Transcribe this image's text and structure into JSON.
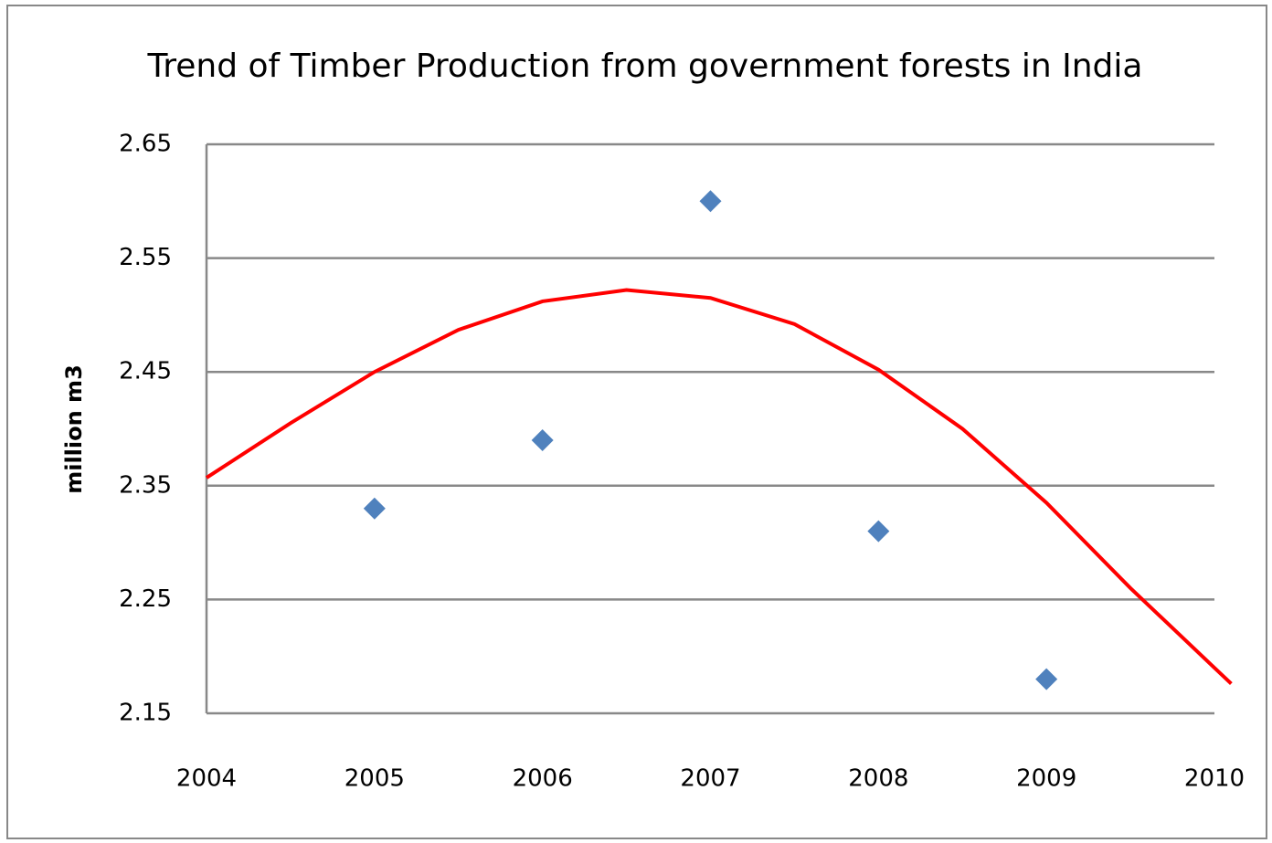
{
  "chart_data": {
    "type": "scatter",
    "title": "Trend of Timber Production from government forests in India",
    "y_label": "million m3",
    "series": [
      {
        "type": "scatter",
        "color": "#4f81bd",
        "x": [
          2005,
          2006,
          2007,
          2008,
          2009
        ],
        "values": [
          2.33,
          2.39,
          2.6,
          2.31,
          2.18
        ]
      },
      {
        "type": "line",
        "color": "#ff0000",
        "x": [
          2004,
          2004.5,
          2005,
          2005.5,
          2006,
          2006.5,
          2007,
          2007.5,
          2008,
          2008.5,
          2009,
          2009.5,
          2010,
          2010.1
        ],
        "values": [
          2.357,
          2.405,
          2.45,
          2.487,
          2.512,
          2.522,
          2.515,
          2.492,
          2.452,
          2.4,
          2.335,
          2.26,
          2.19,
          2.176
        ]
      }
    ],
    "xlim": [
      2004,
      2010
    ],
    "xticks": [
      2004,
      2005,
      2006,
      2007,
      2008,
      2009,
      2010
    ],
    "ylim": [
      2.15,
      2.65
    ],
    "yticks": [
      2.15,
      2.25,
      2.35,
      2.45,
      2.55,
      2.65
    ],
    "grid": true
  }
}
